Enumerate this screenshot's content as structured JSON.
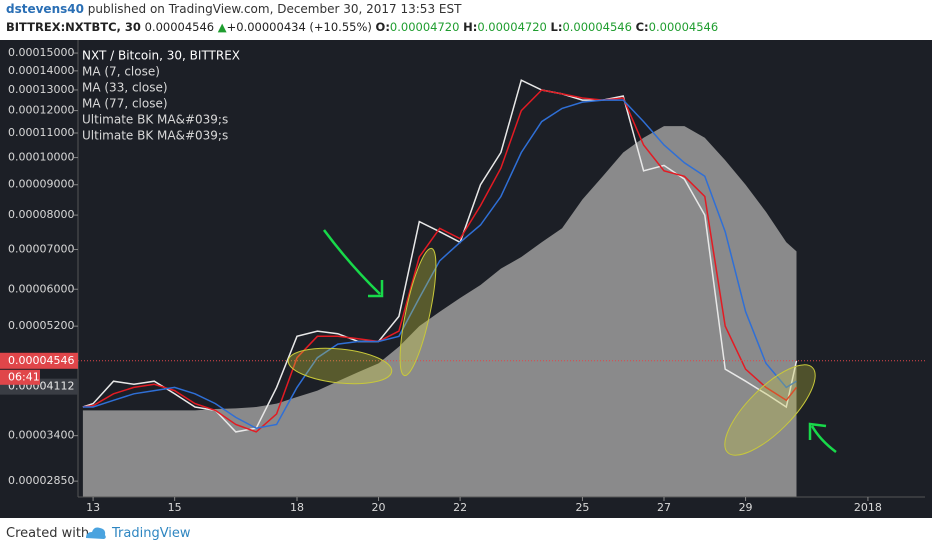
{
  "header": {
    "user": "dstevens40",
    "published": "published on TradingView.com, December 30, 2017 13:53 EST",
    "symbol": "BITTREX:NXTBTC, 30",
    "price": "0.00004546",
    "arrow": "▲",
    "change": "+0.00000434 (+10.55%)",
    "o_label": "O:",
    "o_value": "0.00004720",
    "h_label": "H:",
    "h_value": "0.00004720",
    "l_label": "L:",
    "l_value": "0.00004546",
    "c_label": "C:",
    "c_value": "0.00004546"
  },
  "footer": {
    "created": "Created with",
    "brand": "TradingView"
  },
  "chart_data": {
    "type": "line",
    "log_scale": true,
    "grid": false,
    "x": [
      12.75,
      13,
      13.5,
      14,
      14.5,
      15,
      15.5,
      16,
      16.5,
      17,
      17.5,
      18,
      18.5,
      19,
      19.5,
      20,
      20.5,
      21,
      21.5,
      22,
      22.5,
      23,
      23.5,
      24,
      24.5,
      25,
      25.5,
      26,
      26.5,
      27,
      27.5,
      28,
      28.5,
      29,
      29.5,
      30,
      30.25
    ],
    "xlim": [
      12.63,
      33.4
    ],
    "xticks": [
      13,
      15,
      18,
      20,
      22,
      25,
      27,
      29,
      {
        "value": 32,
        "label": "2018"
      }
    ],
    "ylim": [
      2.68e-05,
      0.0001578
    ],
    "yticks": [
      {
        "value": 0.00015,
        "label": "0.00015000"
      },
      {
        "value": 0.00014,
        "label": "0.00014000"
      },
      {
        "value": 0.00013,
        "label": "0.00013000"
      },
      {
        "value": 0.00012,
        "label": "0.00012000"
      },
      {
        "value": 0.00011,
        "label": "0.00011000"
      },
      {
        "value": 0.0001,
        "label": "0.00010000"
      },
      {
        "value": 9e-05,
        "label": "0.00009000"
      },
      {
        "value": 8e-05,
        "label": "0.00008000"
      },
      {
        "value": 7e-05,
        "label": "0.00007000"
      },
      {
        "value": 6e-05,
        "label": "0.00006000"
      },
      {
        "value": 5.2e-05,
        "label": "0.00005200"
      },
      {
        "value": 3.4e-05,
        "label": "0.00003400"
      },
      {
        "value": 2.85e-05,
        "label": "0.00002850"
      }
    ],
    "last_price": {
      "value": 4.546e-05,
      "label": "0.00004546"
    },
    "countdown": "06:41",
    "cursor_price": {
      "value": 4.112e-05,
      "label": "0.00004112"
    },
    "other_legend_entries": [
      "Ultimate BK MA&#039;s",
      "Ultimate BK MA&#039;s"
    ],
    "series": [
      {
        "name": "MA (77, close)",
        "style": "area",
        "color": "#9e9e9e",
        "values": [
          3.75e-05,
          3.75e-05,
          3.75e-05,
          3.75e-05,
          3.75e-05,
          3.75e-05,
          3.75e-05,
          3.77e-05,
          3.78e-05,
          3.8e-05,
          3.85e-05,
          3.95e-05,
          4.05e-05,
          4.2e-05,
          4.35e-05,
          4.5e-05,
          4.8e-05,
          5.2e-05,
          5.5e-05,
          5.8e-05,
          6.1e-05,
          6.5e-05,
          6.8e-05,
          7.2e-05,
          7.6e-05,
          8.5e-05,
          9.3e-05,
          0.000102,
          0.000108,
          0.000113,
          0.000113,
          0.000108,
          9.9e-05,
          9e-05,
          8.1e-05,
          7.2e-05,
          6.95e-05
        ]
      },
      {
        "name": "NXT / Bitcoin, 30, BITTREX",
        "style": "line",
        "color": "#e8e8e8",
        "values": [
          3.8e-05,
          3.85e-05,
          4.2e-05,
          4.15e-05,
          4.2e-05,
          4e-05,
          3.8e-05,
          3.75e-05,
          3.45e-05,
          3.5e-05,
          4.1e-05,
          5e-05,
          5.1e-05,
          5.05e-05,
          4.9e-05,
          4.9e-05,
          5.4e-05,
          7.8e-05,
          7.5e-05,
          7.2e-05,
          9e-05,
          0.000102,
          0.000135,
          0.00013,
          0.000128,
          0.000125,
          0.000125,
          0.000127,
          9.5e-05,
          9.7e-05,
          9.2e-05,
          8e-05,
          4.4e-05,
          4.2e-05,
          4e-05,
          3.8e-05,
          4.546e-05
        ]
      },
      {
        "name": "MA (7, close)",
        "style": "line",
        "color": "#e31b23",
        "values": [
          3.8e-05,
          3.82e-05,
          4e-05,
          4.1e-05,
          4.15e-05,
          4.05e-05,
          3.85e-05,
          3.75e-05,
          3.55e-05,
          3.45e-05,
          3.7e-05,
          4.6e-05,
          5e-05,
          5e-05,
          4.95e-05,
          4.9e-05,
          5.1e-05,
          6.8e-05,
          7.6e-05,
          7.3e-05,
          8.3e-05,
          9.6e-05,
          0.00012,
          0.00013,
          0.000128,
          0.000126,
          0.000125,
          0.000126,
          0.000105,
          9.5e-05,
          9.3e-05,
          8.6e-05,
          5.2e-05,
          4.4e-05,
          4.1e-05,
          3.9e-05,
          4.1e-05
        ]
      },
      {
        "name": "MA (33, close)",
        "style": "line",
        "color": "#2f6fd6",
        "values": [
          3.8e-05,
          3.8e-05,
          3.9e-05,
          4e-05,
          4.05e-05,
          4.1e-05,
          4e-05,
          3.85e-05,
          3.65e-05,
          3.5e-05,
          3.55e-05,
          4.1e-05,
          4.6e-05,
          4.85e-05,
          4.9e-05,
          4.9e-05,
          5e-05,
          5.8e-05,
          6.7e-05,
          7.2e-05,
          7.7e-05,
          8.6e-05,
          0.000102,
          0.000115,
          0.000121,
          0.000124,
          0.000125,
          0.000125,
          0.000115,
          0.000105,
          9.8e-05,
          9.3e-05,
          7.5e-05,
          5.5e-05,
          4.5e-05,
          4.1e-05,
          4.2e-05
        ]
      }
    ]
  }
}
